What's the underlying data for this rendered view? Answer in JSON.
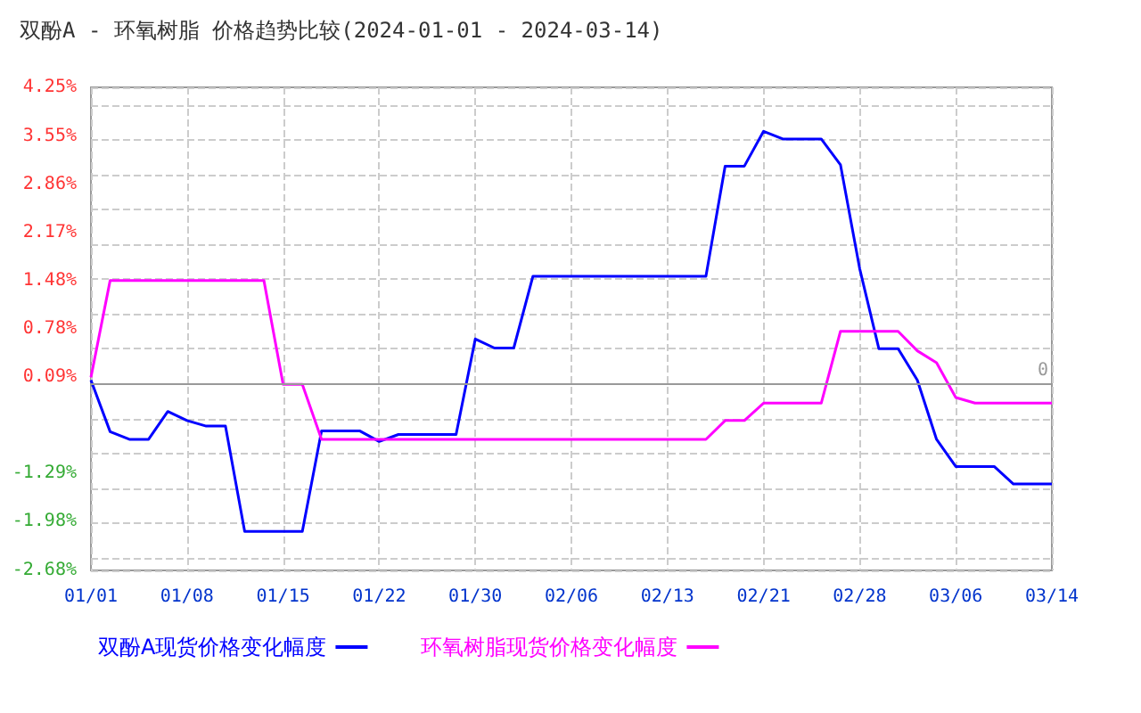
{
  "chart_data": {
    "type": "line",
    "title": "双酚A - 环氧树脂 价格趋势比较(2024-01-01 - 2024-03-14)",
    "categories": [
      "01/01",
      null,
      null,
      null,
      null,
      "01/08",
      null,
      null,
      null,
      null,
      "01/15",
      null,
      null,
      null,
      null,
      "01/22",
      null,
      null,
      null,
      null,
      "01/30",
      null,
      null,
      null,
      null,
      "02/06",
      null,
      null,
      null,
      null,
      "02/13",
      null,
      null,
      null,
      null,
      "02/21",
      null,
      null,
      null,
      null,
      "02/28",
      null,
      null,
      null,
      null,
      "03/06",
      null,
      null,
      null,
      null,
      "03/14"
    ],
    "series": [
      {
        "name": "双酚A现货价格变化幅度",
        "color": "#0000ff",
        "values": [
          0.05,
          -0.69,
          -0.8,
          -0.8,
          -0.4,
          -0.53,
          -0.61,
          -0.61,
          -2.12,
          -2.12,
          -2.12,
          -2.12,
          -0.68,
          -0.68,
          -0.68,
          -0.83,
          -0.73,
          -0.73,
          -0.73,
          -0.73,
          0.64,
          0.51,
          0.51,
          1.54,
          1.54,
          1.54,
          1.54,
          1.54,
          1.54,
          1.54,
          1.54,
          1.54,
          1.54,
          3.12,
          3.12,
          3.62,
          3.51,
          3.51,
          3.51,
          3.14,
          1.65,
          0.5,
          0.5,
          0.05,
          -0.8,
          -1.19,
          -1.19,
          -1.19,
          -1.44,
          -1.44,
          -1.44
        ]
      },
      {
        "name": "环氧树脂现货价格变化幅度",
        "color": "#ff00ff",
        "values": [
          0.09,
          1.48,
          1.48,
          1.48,
          1.48,
          1.48,
          1.48,
          1.48,
          1.48,
          1.48,
          -0.01,
          -0.01,
          -0.8,
          -0.8,
          -0.8,
          -0.8,
          -0.8,
          -0.8,
          -0.8,
          -0.8,
          -0.8,
          -0.8,
          -0.8,
          -0.8,
          -0.8,
          -0.8,
          -0.8,
          -0.8,
          -0.8,
          -0.8,
          -0.8,
          -0.8,
          -0.8,
          -0.53,
          -0.53,
          -0.28,
          -0.28,
          -0.28,
          -0.28,
          0.75,
          0.75,
          0.75,
          0.75,
          0.47,
          0.3,
          -0.2,
          -0.28,
          -0.28,
          -0.28,
          -0.28,
          -0.28
        ]
      }
    ],
    "ylim": [
      -2.68,
      4.25
    ],
    "yticks": [
      {
        "value": -2.68,
        "label": "-2.68%"
      },
      {
        "value": -1.98,
        "label": "-1.98%"
      },
      {
        "value": -1.29,
        "label": "-1.29%"
      },
      {
        "value": 0.09,
        "label": "0.09%"
      },
      {
        "value": 0.78,
        "label": "0.78%"
      },
      {
        "value": 1.48,
        "label": "1.48%"
      },
      {
        "value": 2.17,
        "label": "2.17%"
      },
      {
        "value": 2.86,
        "label": "2.86%"
      },
      {
        "value": 3.55,
        "label": "3.55%"
      },
      {
        "value": 4.25,
        "label": "4.25%"
      }
    ],
    "ref_lines": [
      {
        "axis": "y",
        "value": 0,
        "label": "0",
        "color": "#999999",
        "line_style": "solid"
      }
    ],
    "grid": true,
    "legend": "bottom",
    "marker": "none",
    "line_style": "solid"
  }
}
